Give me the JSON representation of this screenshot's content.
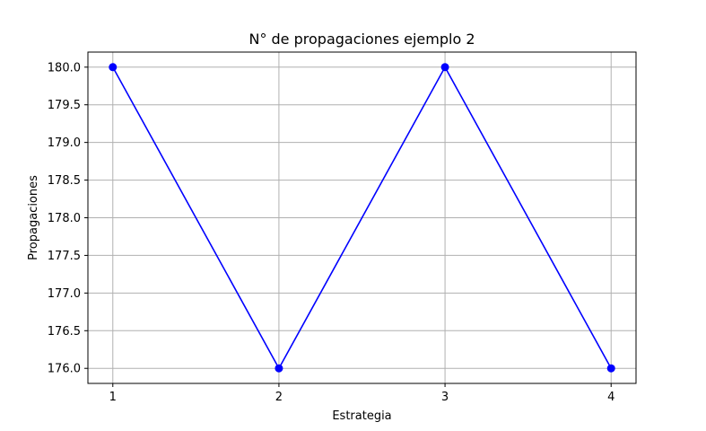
{
  "chart_data": {
    "type": "line",
    "title": "N° de propagaciones ejemplo 2",
    "xlabel": "Estrategia",
    "ylabel": "Propagaciones",
    "x": [
      1,
      2,
      3,
      4
    ],
    "series": [
      {
        "values": [
          180.0,
          176.0,
          180.0,
          176.0
        ],
        "color": "#0000ff",
        "marker": "circle"
      }
    ],
    "xticks": [
      "1",
      "2",
      "3",
      "4"
    ],
    "yticks": [
      "176.0",
      "176.5",
      "177.0",
      "177.5",
      "178.0",
      "178.5",
      "179.0",
      "179.5",
      "180.0"
    ],
    "xlim": [
      0.85,
      4.15
    ],
    "ylim": [
      175.8,
      180.2
    ],
    "grid": true,
    "grid_color": "#b0b0b0"
  }
}
